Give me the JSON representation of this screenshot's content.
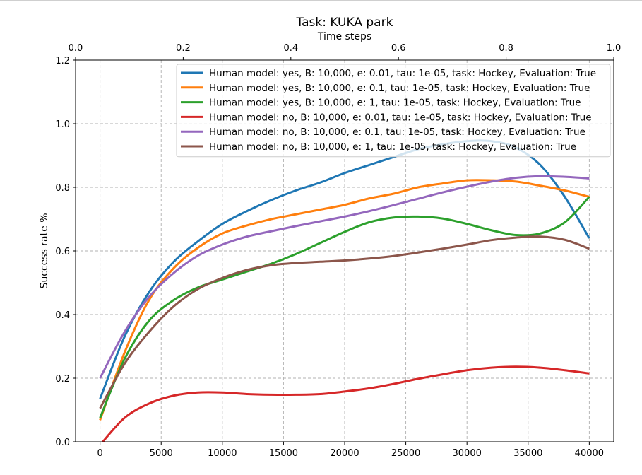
{
  "chart_data": {
    "type": "line",
    "title": "Task: KUKA park",
    "xlabel": "",
    "ylabel": "Success rate %",
    "x2label": "Time steps",
    "xlim": [
      -2000,
      42000
    ],
    "ylim": [
      0,
      1.2
    ],
    "x2lim": [
      0,
      1
    ],
    "xticks": [
      0,
      5000,
      10000,
      15000,
      20000,
      25000,
      30000,
      35000,
      40000
    ],
    "yticks": [
      0.0,
      0.2,
      0.4,
      0.6,
      0.8,
      1.0,
      1.2
    ],
    "x2ticks": [
      0.0,
      0.2,
      0.4,
      0.6,
      0.8,
      1.0
    ],
    "xtick_labels": [
      "0",
      "5000",
      "10000",
      "15000",
      "20000",
      "25000",
      "30000",
      "35000",
      "40000"
    ],
    "ytick_labels": [
      "0.0",
      "0.2",
      "0.4",
      "0.6",
      "0.8",
      "1.0",
      "1.2"
    ],
    "x2tick_labels": [
      "0.0",
      "0.2",
      "0.4",
      "0.6",
      "0.8",
      "1.0"
    ],
    "grid": true,
    "legend_position": "top-right",
    "x": [
      0,
      2000,
      4000,
      6000,
      8000,
      10000,
      12000,
      14000,
      16000,
      18000,
      20000,
      22000,
      24000,
      26000,
      28000,
      30000,
      32000,
      34000,
      36000,
      38000,
      40000
    ],
    "series": [
      {
        "name": "Human model: yes, B: 10,000, e: 0.01, tau: 1e-05, task: Hockey, Evaluation: True",
        "color": "#1f77b4",
        "values": [
          0.135,
          0.33,
          0.47,
          0.565,
          0.63,
          0.685,
          0.725,
          0.76,
          0.79,
          0.815,
          0.845,
          0.87,
          0.895,
          0.92,
          0.935,
          0.945,
          0.945,
          0.925,
          0.87,
          0.77,
          0.64
        ]
      },
      {
        "name": "Human model: yes, B: 10,000, e: 0.1, tau: 1e-05, task: Hockey, Evaluation: True",
        "color": "#ff7f0e",
        "values": [
          0.068,
          0.28,
          0.445,
          0.545,
          0.61,
          0.655,
          0.68,
          0.7,
          0.715,
          0.73,
          0.745,
          0.765,
          0.78,
          0.8,
          0.812,
          0.822,
          0.822,
          0.818,
          0.805,
          0.79,
          0.77
        ]
      },
      {
        "name": "Human model: yes, B: 10,000, e: 1, tau: 1e-05, task: Hockey, Evaluation: True",
        "color": "#2ca02c",
        "values": [
          0.075,
          0.26,
          0.38,
          0.445,
          0.485,
          0.51,
          0.535,
          0.56,
          0.59,
          0.625,
          0.66,
          0.69,
          0.705,
          0.708,
          0.702,
          0.685,
          0.665,
          0.65,
          0.655,
          0.69,
          0.77
        ]
      },
      {
        "name": "Human model: no, B: 10,000, e: 0.01, tau: 1e-05, task: Hockey, Evaluation: True",
        "color": "#d62728",
        "values": [
          -0.01,
          0.075,
          0.12,
          0.145,
          0.155,
          0.155,
          0.15,
          0.148,
          0.148,
          0.15,
          0.158,
          0.168,
          0.182,
          0.198,
          0.212,
          0.225,
          0.233,
          0.236,
          0.233,
          0.225,
          0.215
        ]
      },
      {
        "name": "Human model: no, B: 10,000, e: 0.1, tau: 1e-05, task: Hockey, Evaluation: True",
        "color": "#9467bd",
        "values": [
          0.2,
          0.345,
          0.455,
          0.53,
          0.585,
          0.62,
          0.645,
          0.662,
          0.678,
          0.693,
          0.708,
          0.725,
          0.744,
          0.764,
          0.784,
          0.802,
          0.818,
          0.83,
          0.835,
          0.833,
          0.828
        ]
      },
      {
        "name": "Human model: no, B: 10,000, e: 1, tau: 1e-05, task: Hockey, Evaluation: True",
        "color": "#8c564b",
        "values": [
          0.105,
          0.245,
          0.345,
          0.425,
          0.48,
          0.515,
          0.54,
          0.555,
          0.562,
          0.566,
          0.57,
          0.576,
          0.584,
          0.595,
          0.607,
          0.62,
          0.634,
          0.642,
          0.645,
          0.635,
          0.607
        ]
      }
    ]
  }
}
